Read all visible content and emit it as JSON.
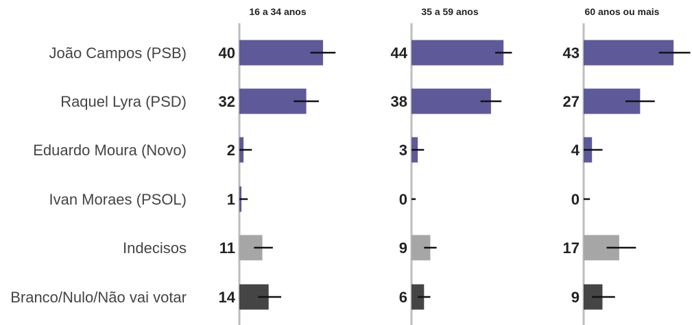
{
  "chart_data": {
    "type": "bar",
    "orientation": "horizontal",
    "categories": [
      "João Campos (PSB)",
      "Raquel Lyra (PSD)",
      "Eduardo Moura (Novo)",
      "Ivan Moraes (PSOL)",
      "Indecisos",
      "Branco/Nulo/Não vai votar"
    ],
    "category_colors": [
      "#5e5a99",
      "#5e5a99",
      "#5e5a99",
      "#5e5a99",
      "#a6a6a6",
      "#454545"
    ],
    "error_color": "#111111",
    "axis_color": "#bdbdbd",
    "xlim": [
      0,
      50
    ],
    "panels": [
      {
        "title": "16 a 34 anos",
        "values": [
          40,
          32,
          2,
          1,
          11,
          14
        ],
        "error_low": [
          34,
          26,
          0,
          0,
          7,
          9
        ],
        "error_high": [
          46,
          38,
          6,
          4,
          16,
          20
        ]
      },
      {
        "title": "35 a 59 anos",
        "values": [
          44,
          38,
          3,
          0,
          9,
          6
        ],
        "error_low": [
          40,
          33,
          0,
          0,
          6,
          3
        ],
        "error_high": [
          48,
          43,
          6,
          2,
          12,
          9
        ]
      },
      {
        "title": "60 anos ou mais",
        "values": [
          43,
          27,
          4,
          0,
          17,
          9
        ],
        "error_low": [
          36,
          20,
          0,
          0,
          11,
          4
        ],
        "error_high": [
          51,
          34,
          9,
          3,
          25,
          15
        ]
      }
    ]
  }
}
